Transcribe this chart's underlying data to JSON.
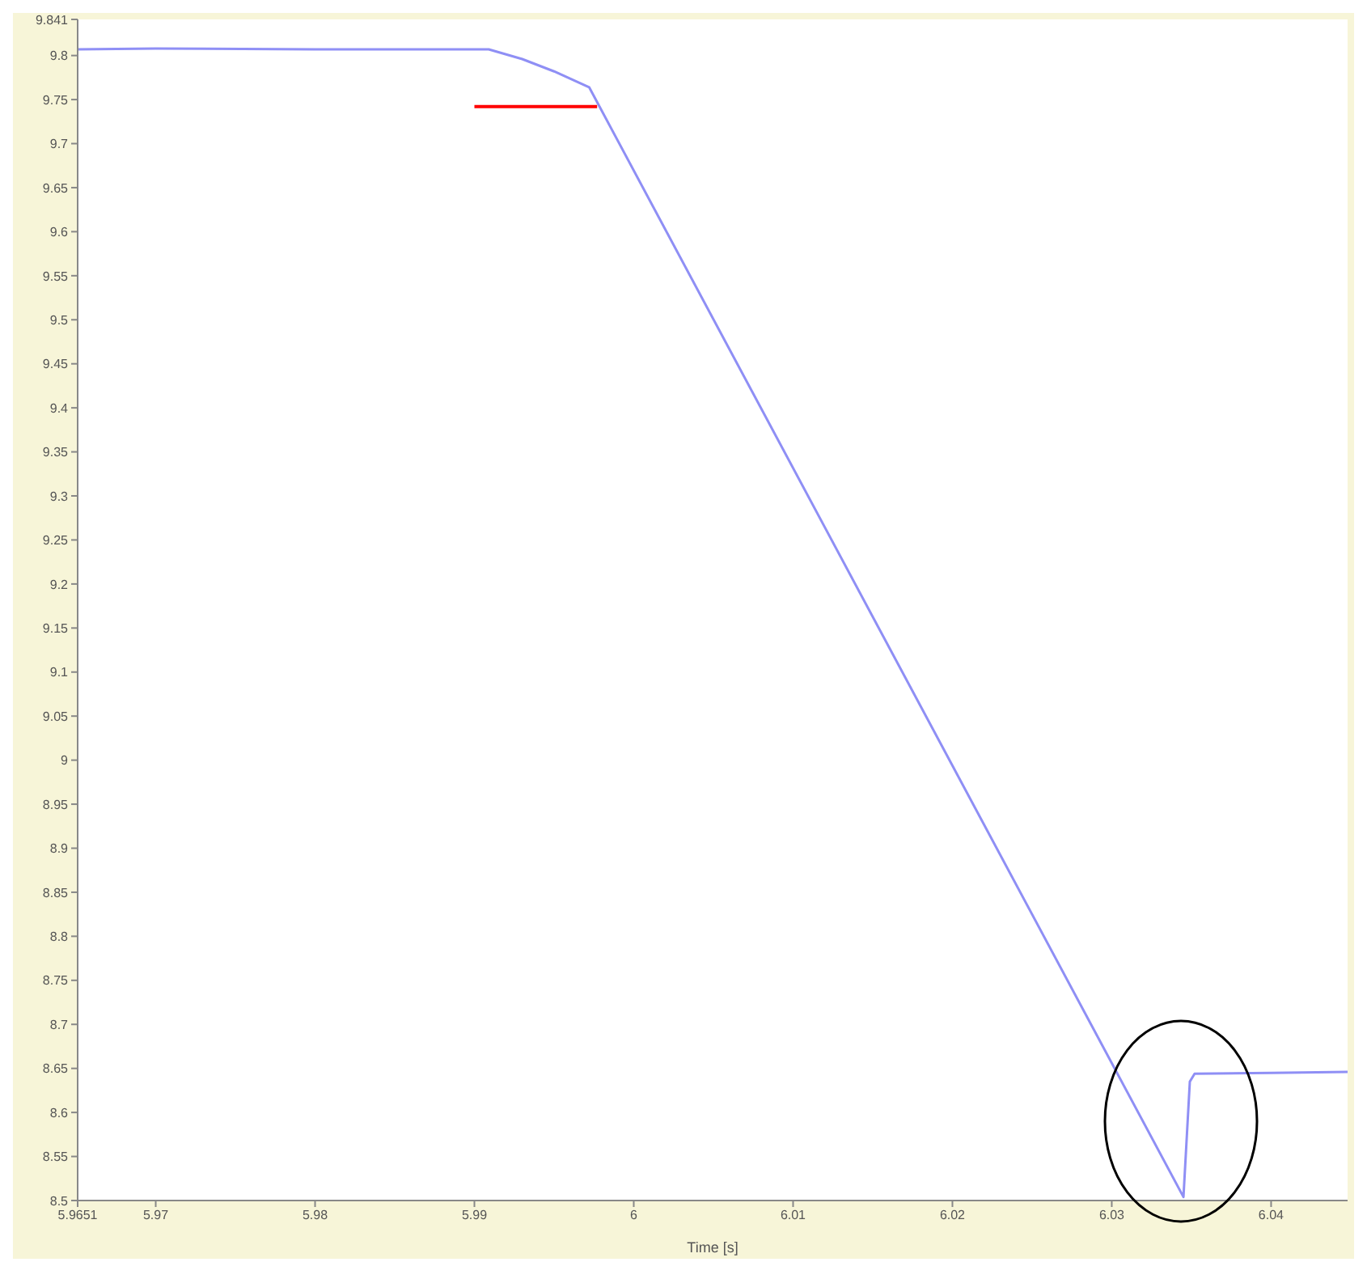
{
  "chart_data": {
    "type": "line",
    "xlabel": "Time [s]",
    "x": [
      5.9651,
      5.97,
      5.98,
      5.9909,
      5.993,
      5.995,
      5.9972,
      6.0345,
      6.0349,
      6.0352,
      6.04,
      6.0448
    ],
    "series": [
      {
        "color": "#8f8ff5",
        "values": [
          9.807,
          9.808,
          9.807,
          9.807,
          9.796,
          9.782,
          9.764,
          8.504,
          8.635,
          8.644,
          8.645,
          8.646
        ]
      },
      {
        "type": "line",
        "color": "#ff0000",
        "x": [
          5.99,
          5.9977
        ],
        "values": [
          9.742,
          9.742
        ]
      }
    ],
    "xlim": [
      5.9651,
      6.0448
    ],
    "xticks": [
      5.9651,
      5.97,
      5.98,
      5.99,
      6,
      6.01,
      6.02,
      6.03,
      6.04
    ],
    "ylim": [
      8.5,
      9.841
    ],
    "yticks": [
      8.5,
      8.55,
      8.6,
      8.65,
      8.7,
      8.75,
      8.8,
      8.85,
      8.9,
      8.95,
      9,
      9.05,
      9.1,
      9.15,
      9.2,
      9.25,
      9.3,
      9.35,
      9.4,
      9.45,
      9.5,
      9.55,
      9.6,
      9.65,
      9.7,
      9.75,
      9.8,
      9.841
    ],
    "grid": false,
    "marker": "none",
    "line_style": "solid"
  }
}
